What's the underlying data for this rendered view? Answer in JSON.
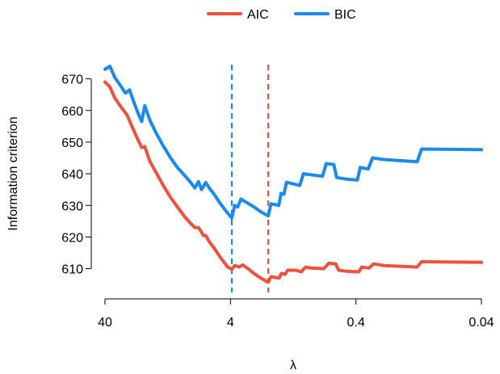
{
  "chart_data": {
    "type": "line",
    "xlabel": "λ",
    "ylabel": "Information criterion",
    "x_scale": "log-reversed",
    "xlim": [
      40,
      0.04
    ],
    "ylim": [
      603,
      675
    ],
    "x_ticks": [
      {
        "value": 40,
        "label": "40"
      },
      {
        "value": 4,
        "label": "4"
      },
      {
        "value": 0.4,
        "label": "0.4"
      },
      {
        "value": 0.04,
        "label": "0.04"
      }
    ],
    "y_ticks": [
      {
        "value": 610,
        "label": "610"
      },
      {
        "value": 620,
        "label": "620"
      },
      {
        "value": 630,
        "label": "630"
      },
      {
        "value": 640,
        "label": "640"
      },
      {
        "value": 650,
        "label": "650"
      },
      {
        "value": 660,
        "label": "660"
      },
      {
        "value": 670,
        "label": "670"
      }
    ],
    "grid": false,
    "legend_position": "top-center",
    "series": [
      {
        "name": "AIC",
        "color": "#F0503C",
        "min_lambda": 2.0,
        "points": [
          [
            40,
            669
          ],
          [
            36.6,
            667.5
          ],
          [
            33.5,
            664
          ],
          [
            29.7,
            661
          ],
          [
            26.6,
            658.5
          ],
          [
            24.4,
            655
          ],
          [
            22.3,
            651.5
          ],
          [
            20.4,
            648.3
          ],
          [
            19.3,
            648.6
          ],
          [
            17.6,
            644
          ],
          [
            15.5,
            640
          ],
          [
            13.6,
            636
          ],
          [
            12.0,
            632.5
          ],
          [
            10.6,
            629.5
          ],
          [
            9.3,
            626.5
          ],
          [
            8.4,
            624.5
          ],
          [
            7.7,
            623
          ],
          [
            7.2,
            623
          ],
          [
            6.8,
            621.5
          ],
          [
            6.6,
            620.5
          ],
          [
            6.3,
            620.5
          ],
          [
            5.9,
            618.5
          ],
          [
            5.4,
            616.5
          ],
          [
            5.0,
            614.5
          ],
          [
            4.6,
            612.5
          ],
          [
            4.2,
            610.5
          ],
          [
            3.9,
            609.8
          ],
          [
            3.7,
            611.0
          ],
          [
            3.4,
            610.5
          ],
          [
            3.2,
            611.2
          ],
          [
            2.9,
            610.0
          ],
          [
            2.6,
            608.5
          ],
          [
            2.3,
            607.0
          ],
          [
            2.0,
            605.7
          ],
          [
            1.9,
            607.5
          ],
          [
            1.8,
            607.3
          ],
          [
            1.64,
            607.0
          ],
          [
            1.57,
            608.5
          ],
          [
            1.47,
            608.2
          ],
          [
            1.4,
            609.5
          ],
          [
            1.3,
            609.5
          ],
          [
            1.21,
            609.5
          ],
          [
            1.09,
            609.0
          ],
          [
            1.01,
            610.5
          ],
          [
            0.92,
            610.2
          ],
          [
            0.72,
            610.0
          ],
          [
            0.66,
            611.7
          ],
          [
            0.58,
            611.5
          ],
          [
            0.55,
            609.5
          ],
          [
            0.48,
            609.2
          ],
          [
            0.38,
            609.0
          ],
          [
            0.36,
            610.5
          ],
          [
            0.315,
            610.2
          ],
          [
            0.29,
            611.5
          ],
          [
            0.24,
            611.0
          ],
          [
            0.13,
            610.5
          ],
          [
            0.12,
            612.2
          ],
          [
            0.07,
            612.1
          ],
          [
            0.04,
            612.0
          ]
        ]
      },
      {
        "name": "BIC",
        "color": "#1A8AF0",
        "min_lambda": 3.9,
        "points": [
          [
            40,
            673
          ],
          [
            36.6,
            674
          ],
          [
            33.5,
            670.5
          ],
          [
            29.7,
            667.5
          ],
          [
            27.5,
            665.5
          ],
          [
            25.5,
            666.5
          ],
          [
            23.5,
            662.5
          ],
          [
            21.5,
            658.5
          ],
          [
            20.4,
            656.5
          ],
          [
            19.3,
            661.5
          ],
          [
            17.6,
            657
          ],
          [
            15.5,
            652.5
          ],
          [
            13.6,
            648.5
          ],
          [
            12.0,
            645
          ],
          [
            10.6,
            642
          ],
          [
            9.3,
            639.5
          ],
          [
            8.4,
            637.5
          ],
          [
            7.7,
            635.5
          ],
          [
            7.2,
            637.5
          ],
          [
            6.8,
            635.0
          ],
          [
            6.3,
            637.2
          ],
          [
            5.9,
            635.5
          ],
          [
            5.4,
            633.5
          ],
          [
            5.0,
            631.5
          ],
          [
            4.6,
            629.5
          ],
          [
            4.2,
            627.5
          ],
          [
            3.9,
            626.0
          ],
          [
            3.7,
            630.0
          ],
          [
            3.5,
            629.5
          ],
          [
            3.3,
            632.0
          ],
          [
            3.0,
            631.0
          ],
          [
            2.6,
            629.5
          ],
          [
            2.3,
            628.0
          ],
          [
            2.0,
            626.7
          ],
          [
            1.9,
            630.5
          ],
          [
            1.78,
            630.3
          ],
          [
            1.65,
            630.0
          ],
          [
            1.58,
            633.8
          ],
          [
            1.5,
            633.5
          ],
          [
            1.43,
            637.3
          ],
          [
            1.33,
            637.0
          ],
          [
            1.12,
            636.3
          ],
          [
            1.05,
            640.0
          ],
          [
            0.97,
            639.8
          ],
          [
            0.74,
            639.2
          ],
          [
            0.69,
            643.2
          ],
          [
            0.6,
            642.9
          ],
          [
            0.57,
            638.8
          ],
          [
            0.48,
            638.3
          ],
          [
            0.39,
            638.0
          ],
          [
            0.37,
            642.0
          ],
          [
            0.32,
            641.5
          ],
          [
            0.295,
            645.0
          ],
          [
            0.24,
            644.5
          ],
          [
            0.13,
            643.8
          ],
          [
            0.12,
            647.8
          ],
          [
            0.07,
            647.7
          ],
          [
            0.04,
            647.6
          ]
        ]
      }
    ]
  }
}
